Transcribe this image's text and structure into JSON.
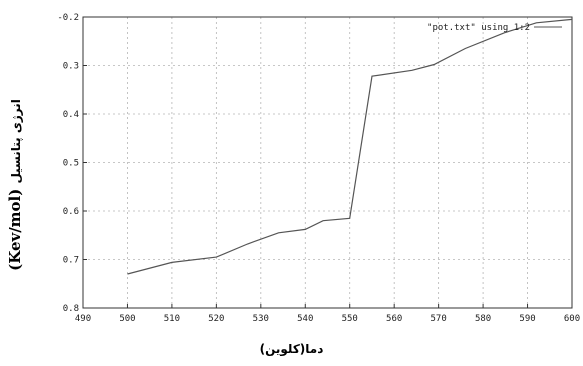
{
  "chart_data": {
    "type": "line",
    "xlabel": "دما(کلوین)",
    "ylabel": "انرژی پتانسیل",
    "ylabel_unit": "(Kev/mol)",
    "xlim": [
      490,
      600
    ],
    "ylim": [
      -0.2,
      0.8
    ],
    "x_ticks": [
      490,
      500,
      510,
      520,
      530,
      540,
      550,
      560,
      570,
      580,
      590,
      600
    ],
    "y_ticks": [
      -0.2,
      0.3,
      0.4,
      0.5,
      0.6,
      0.7,
      0.8
    ],
    "y_tick_labels": [
      "-0.2",
      "0.3",
      "0.4",
      "0.5",
      "0.6",
      "0.7",
      "0.8"
    ],
    "grid": true,
    "legend_position": "top-right",
    "series": [
      {
        "name": "\"pot.txt\" using 1:2",
        "color": "#555555",
        "x": [
          500,
          510,
          520,
          527,
          534,
          540,
          544,
          550,
          555,
          564,
          569,
          576,
          585,
          592,
          600
        ],
        "y": [
          0.73,
          0.706,
          0.695,
          0.668,
          0.645,
          0.638,
          0.62,
          0.615,
          0.322,
          0.31,
          0.298,
          0.265,
          0.232,
          0.212,
          0.205
        ]
      }
    ]
  }
}
